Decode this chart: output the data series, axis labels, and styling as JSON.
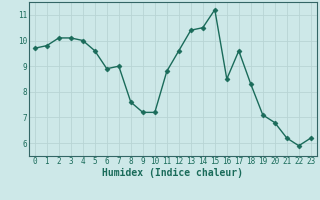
{
  "x": [
    0,
    1,
    2,
    3,
    4,
    5,
    6,
    7,
    8,
    9,
    10,
    11,
    12,
    13,
    14,
    15,
    16,
    17,
    18,
    19,
    20,
    21,
    22,
    23
  ],
  "y": [
    9.7,
    9.8,
    10.1,
    10.1,
    10.0,
    9.6,
    8.9,
    9.0,
    7.6,
    7.2,
    7.2,
    8.8,
    9.6,
    10.4,
    10.5,
    11.2,
    8.5,
    9.6,
    8.3,
    7.1,
    6.8,
    6.2,
    5.9,
    6.2
  ],
  "line_color": "#1a6b5a",
  "marker": "D",
  "markersize": 2.5,
  "linewidth": 1.0,
  "bg_color": "#cde8e8",
  "grid_color": "#b8d4d4",
  "xlabel": "Humidex (Indice chaleur)",
  "xlim": [
    -0.5,
    23.5
  ],
  "ylim": [
    5.5,
    11.5
  ],
  "yticks": [
    6,
    7,
    8,
    9,
    10,
    11
  ],
  "xticks": [
    0,
    1,
    2,
    3,
    4,
    5,
    6,
    7,
    8,
    9,
    10,
    11,
    12,
    13,
    14,
    15,
    16,
    17,
    18,
    19,
    20,
    21,
    22,
    23
  ],
  "tick_fontsize": 5.5,
  "xlabel_fontsize": 7.0,
  "spine_color": "#336666"
}
